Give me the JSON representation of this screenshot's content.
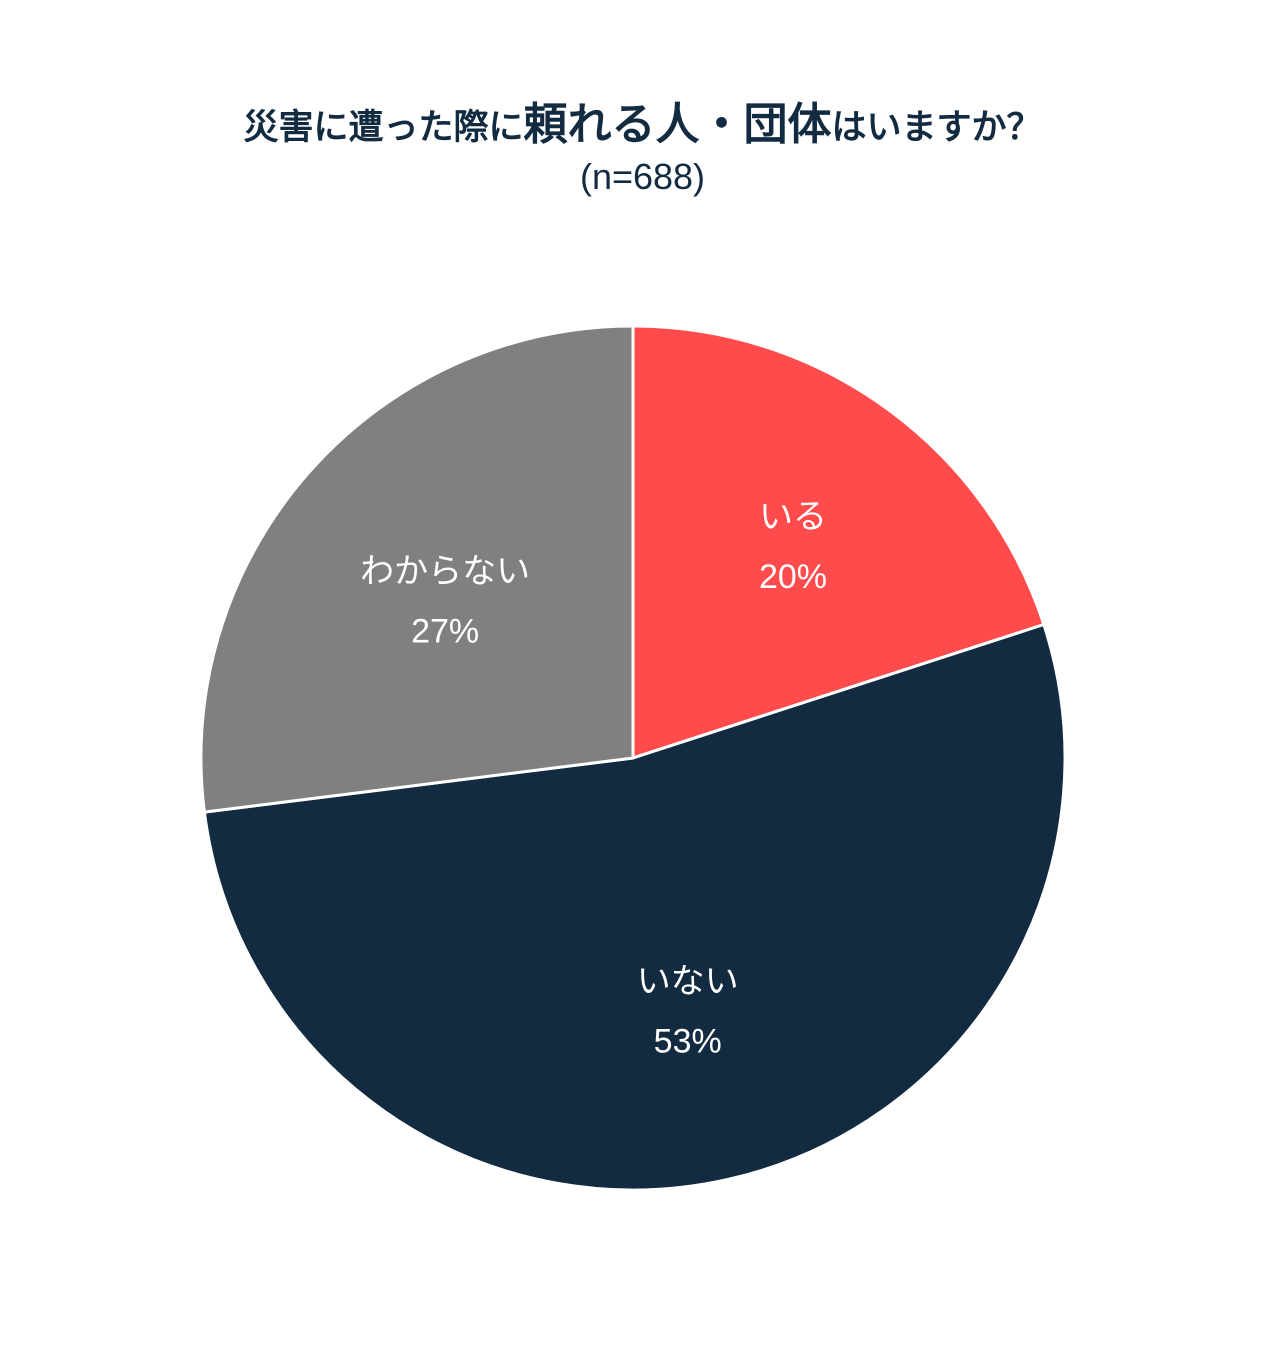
{
  "chart_data": {
    "type": "pie",
    "title_parts": [
      {
        "text": "災害に遭った際に",
        "style": "normal"
      },
      {
        "text": "頼れる人・団体",
        "style": "big"
      },
      {
        "text": "はいますか？",
        "style": "normal"
      }
    ],
    "subtitle": "(n=688)",
    "slices": [
      {
        "label": "いる",
        "value": 20,
        "value_label": "20%",
        "color": "#ff4b4b"
      },
      {
        "label": "いない",
        "value": 53,
        "value_label": "53%",
        "color": "#122b40"
      },
      {
        "label": "わからない",
        "value": 27,
        "value_label": "27%",
        "color": "#808080"
      }
    ],
    "start_angle": "12 o'clock",
    "direction": "clockwise",
    "legend": "none"
  }
}
